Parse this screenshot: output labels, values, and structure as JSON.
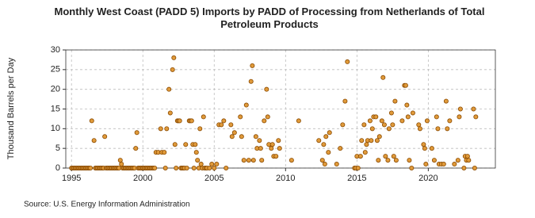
{
  "chart_data": {
    "type": "scatter",
    "title": "Monthly West Coast (PADD 5) Imports by PADD of Processing from Netherlands of Total Petroleum Products",
    "ylabel": "Thousand Barrels per Day",
    "source": "Source: U.S. Energy Information Administration",
    "color": "#e09a3a",
    "edge_color": "#8a4a00",
    "x": [
      1995.0,
      1995.08,
      1995.17,
      1995.25,
      1995.33,
      1995.42,
      1995.5,
      1995.58,
      1995.67,
      1995.75,
      1995.83,
      1995.92,
      1996.0,
      1996.08,
      1996.17,
      1996.25,
      1996.33,
      1996.42,
      1996.58,
      1996.67,
      1996.75,
      1996.83,
      1996.92,
      1997.0,
      1997.08,
      1997.17,
      1997.25,
      1997.33,
      1997.42,
      1997.5,
      1997.58,
      1997.67,
      1997.75,
      1997.83,
      1997.92,
      1998.0,
      1998.08,
      1998.17,
      1998.25,
      1998.33,
      1998.42,
      1998.5,
      1998.58,
      1998.67,
      1998.75,
      1998.83,
      1998.92,
      1999.0,
      1999.08,
      1999.17,
      1999.25,
      1999.33,
      1999.42,
      1999.5,
      1999.58,
      1999.67,
      1999.75,
      1999.83,
      1999.92,
      2000.0,
      2000.08,
      2000.17,
      2000.25,
      2000.33,
      2000.42,
      2000.5,
      2000.58,
      2000.67,
      2000.75,
      2000.83,
      2000.92,
      2001.08,
      2001.25,
      2001.33,
      2001.5,
      2001.58,
      2001.67,
      2001.83,
      2001.92,
      2002.08,
      2002.17,
      2002.25,
      2002.33,
      2002.42,
      2002.5,
      2002.58,
      2002.67,
      2002.75,
      2002.83,
      2002.92,
      2003.0,
      2003.08,
      2003.25,
      2003.33,
      2003.42,
      2003.5,
      2003.58,
      2003.67,
      2003.75,
      2003.83,
      2003.92,
      2004.0,
      2004.08,
      2004.17,
      2004.25,
      2004.33,
      2004.42,
      2004.5,
      2004.67,
      2004.83,
      2005.0,
      2005.17,
      2005.33,
      2005.5,
      2005.67,
      2005.83,
      2006.17,
      2006.25,
      2006.42,
      2006.83,
      2006.92,
      2007.08,
      2007.25,
      2007.42,
      2007.58,
      2007.67,
      2007.75,
      2007.92,
      2008.0,
      2008.17,
      2008.25,
      2008.33,
      2008.5,
      2008.67,
      2008.75,
      2008.83,
      2009.0,
      2009.08,
      2009.17,
      2009.33,
      2009.5,
      2009.58,
      2010.42,
      2010.92,
      2012.33,
      2012.58,
      2012.67,
      2012.75,
      2012.83,
      2013.0,
      2013.08,
      2013.58,
      2013.83,
      2014.0,
      2014.17,
      2014.33,
      2014.83,
      2014.92,
      2015.0,
      2015.08,
      2015.25,
      2015.33,
      2015.5,
      2015.58,
      2015.67,
      2015.75,
      2015.92,
      2016.0,
      2016.08,
      2016.17,
      2016.33,
      2016.42,
      2016.5,
      2016.58,
      2016.75,
      2016.83,
      2016.92,
      2017.0,
      2017.17,
      2017.25,
      2017.42,
      2017.5,
      2017.58,
      2017.67,
      2017.75,
      2018.17,
      2018.33,
      2018.42,
      2018.5,
      2018.58,
      2018.67,
      2018.83,
      2018.92,
      2019.33,
      2019.42,
      2019.67,
      2019.75,
      2019.83,
      2019.92,
      2020.25,
      2020.42,
      2020.58,
      2020.67,
      2020.75,
      2020.92,
      2021.08,
      2021.25,
      2021.33,
      2021.5,
      2021.83,
      2022.08,
      2022.17,
      2022.25,
      2022.5,
      2022.58,
      2022.67,
      2022.75,
      2022.83,
      2023.17,
      2023.25,
      2023.33
    ],
    "values": [
      0,
      0,
      0,
      0,
      0,
      0,
      0,
      0,
      0,
      0,
      0,
      0,
      0,
      0,
      0,
      0,
      0,
      12,
      7,
      0,
      0,
      0,
      0,
      0,
      0,
      0,
      0,
      8,
      0,
      0,
      0,
      0,
      0,
      0,
      0,
      0,
      0,
      0,
      0,
      0,
      2,
      1,
      0,
      0,
      0,
      0,
      0,
      0,
      0,
      0,
      0,
      0,
      0,
      5,
      9,
      0,
      0,
      0,
      0,
      0,
      0,
      0,
      0,
      0,
      0,
      0,
      0,
      0,
      0,
      0,
      4,
      4,
      10,
      4,
      4,
      0,
      10,
      20,
      14,
      25,
      28,
      6,
      0,
      12,
      12,
      12,
      0,
      0,
      0,
      0,
      6,
      0,
      12,
      12,
      12,
      6,
      0,
      6,
      4,
      2,
      0,
      10,
      1,
      0,
      13,
      0,
      0,
      0,
      0,
      1,
      0,
      1,
      11,
      11,
      12,
      0,
      11,
      8,
      9,
      13,
      8,
      2,
      16,
      2,
      22,
      26,
      2,
      8,
      5,
      7,
      5,
      2,
      12,
      20,
      13,
      6,
      5,
      6,
      3,
      3,
      7,
      5,
      2,
      12,
      7,
      2,
      6,
      1,
      8,
      4,
      9,
      1,
      5,
      11,
      17,
      27,
      0,
      0,
      3,
      0,
      3,
      7,
      11,
      4,
      6,
      7,
      12,
      7,
      10,
      13,
      13,
      7,
      2,
      8,
      12,
      23,
      11,
      3,
      2,
      10,
      14,
      11,
      3,
      17,
      2,
      12,
      21,
      21,
      16,
      13,
      2,
      0,
      14,
      11,
      10,
      6,
      5,
      1,
      12,
      5,
      2,
      13,
      10,
      1,
      1,
      1,
      17,
      10,
      12,
      1,
      2,
      13,
      15,
      0,
      3,
      2,
      3,
      2,
      15,
      0,
      13
    ],
    "xlim": [
      1994.6,
      2024.7
    ],
    "ylim": [
      0,
      30
    ],
    "xticks": [
      1995,
      2000,
      2005,
      2010,
      2015,
      2020
    ],
    "yticks": [
      0,
      5,
      10,
      15,
      20,
      25,
      30
    ],
    "grid": true
  }
}
